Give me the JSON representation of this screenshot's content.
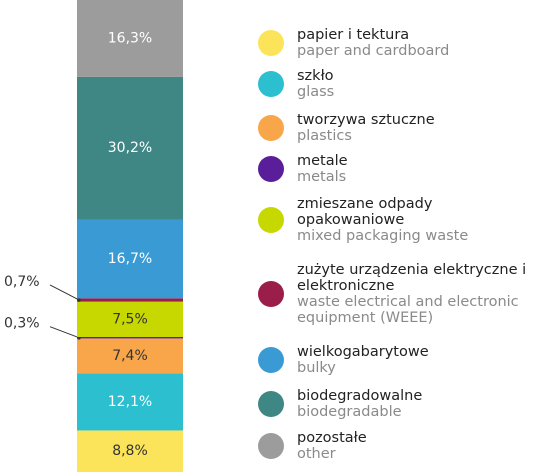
{
  "chart_data": {
    "type": "stacked_bar",
    "ylim": [
      0,
      100
    ],
    "series": [
      {
        "name": "papier i tektura",
        "name_en": "paper and cardboard",
        "color": "#fce45a",
        "values": [
          8.8
        ],
        "value_labels": [
          "8,8%"
        ]
      },
      {
        "name": "szkło",
        "name_en": "glass",
        "color": "#2bbfcf",
        "values": [
          12.1
        ],
        "value_labels": [
          "12,1%"
        ]
      },
      {
        "name": "tworzywa sztuczne",
        "name_en": "plastics",
        "color": "#f9a64a",
        "values": [
          7.4
        ],
        "value_labels": [
          "7,4%"
        ]
      },
      {
        "name": "metale",
        "name_en": "metals",
        "color": "#5a1e9a",
        "values": [
          0.3
        ],
        "value_labels": [
          "0,3%"
        ]
      },
      {
        "name": "zmieszane odpady opakowaniowe",
        "name_en": "mixed packaging waste",
        "color": "#c7d800",
        "values": [
          7.5
        ],
        "value_labels": [
          "7,5%"
        ]
      },
      {
        "name": "zużyte urządzenia elektryczne i elektroniczne",
        "name_en": "waste electrical and electronic equipment (WEEE)",
        "color": "#9b1e4a",
        "values": [
          0.7
        ],
        "value_labels": [
          "0,7%"
        ]
      },
      {
        "name": "wielkogabarytowe",
        "name_en": "bulky",
        "color": "#3a9bd4",
        "values": [
          16.7
        ],
        "value_labels": [
          "16,7%"
        ]
      },
      {
        "name": "biodegradowalne",
        "name_en": "biodegradable",
        "color": "#3f8784",
        "values": [
          30.2
        ],
        "value_labels": [
          "30,2%"
        ]
      },
      {
        "name": "pozostałe",
        "name_en": "other",
        "color": "#9c9c9c",
        "values": [
          16.3
        ],
        "value_labels": [
          "16,3%"
        ]
      }
    ]
  }
}
